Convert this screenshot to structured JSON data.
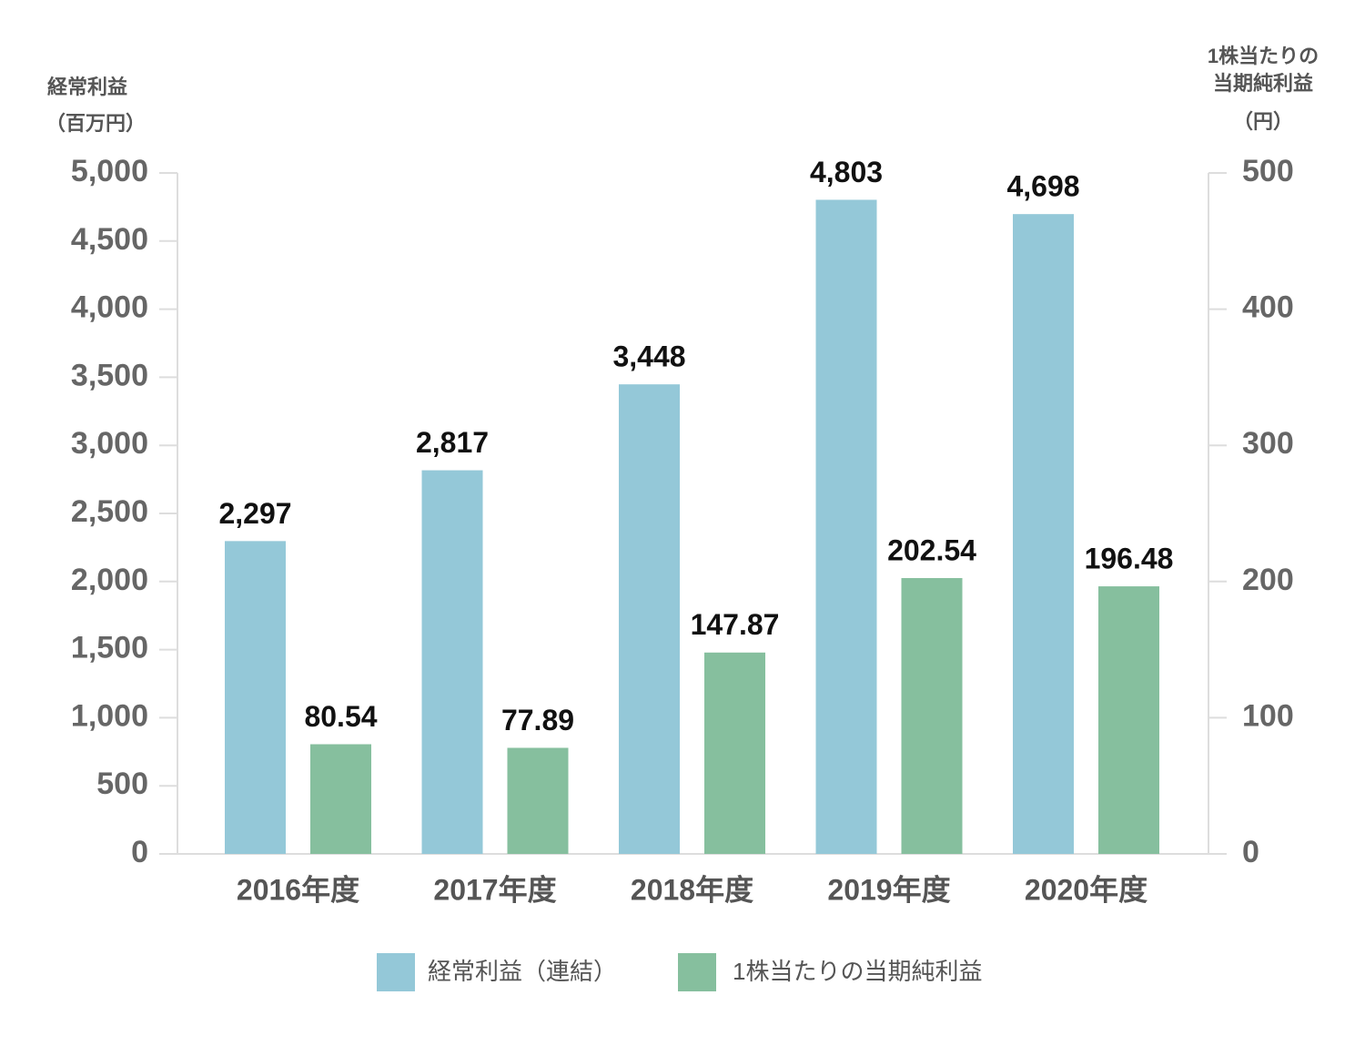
{
  "chart_data": {
    "type": "bar",
    "y_label": [
      "経常利益",
      "（百万円）"
    ],
    "y2_label": [
      "1株当たりの",
      "当期純利益",
      "（円）"
    ],
    "categories": [
      "2016年度",
      "2017年度",
      "2018年度",
      "2019年度",
      "2020年度"
    ],
    "series": [
      {
        "name": "経常利益（連結）",
        "color": "#94c8d8",
        "values": [
          2297,
          2817,
          3448,
          4803,
          4698
        ],
        "value_labels": [
          "2,297",
          "2,817",
          "3,448",
          "4,803",
          "4,698"
        ]
      },
      {
        "name": "1株当たりの当期純利益",
        "color": "#86bf9e",
        "axis": "y2",
        "values": [
          80.54,
          77.89,
          147.87,
          202.54,
          196.48
        ]
      }
    ],
    "ylim": [
      0,
      5000
    ],
    "yticks": [
      0,
      500,
      {
        "value": 1000,
        "label": "1,000"
      },
      {
        "value": 1500,
        "label": "1,500"
      },
      {
        "value": 2000,
        "label": "2,000"
      },
      {
        "value": 2500,
        "label": "2,500"
      },
      {
        "value": 3000,
        "label": "3,000"
      },
      {
        "value": 3500,
        "label": "3,500"
      },
      {
        "value": 4000,
        "label": "4,000"
      },
      {
        "value": 4500,
        "label": "4,500"
      },
      {
        "value": 5000,
        "label": "5,000"
      }
    ],
    "y2lim": [
      0,
      500
    ],
    "y2ticks": [
      0,
      100,
      200,
      300,
      400,
      500
    ]
  }
}
